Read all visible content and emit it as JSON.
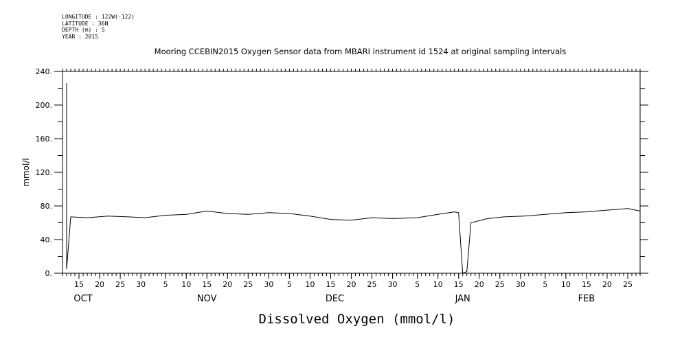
{
  "header": {
    "longitude": "LONGITUDE : 122W(-122)",
    "latitude": "LATITUDE : 36N",
    "depth": "DEPTH (m) : 5",
    "year": "YEAR : 2015"
  },
  "chart_data": {
    "type": "line",
    "title": "Mooring CCEBIN2015 Oxygen Sensor data from MBARI instrument id 1524 at original sampling intervals",
    "xlabel": "Dissolved Oxygen (mmol/l)",
    "ylabel": "mmol/l",
    "ylim": [
      0,
      240
    ],
    "yticks": [
      0,
      40,
      80,
      120,
      160,
      200,
      240
    ],
    "ytick_labels": [
      "0.",
      "40.",
      "80.",
      "120.",
      "160.",
      "200.",
      "240."
    ],
    "xlim": [
      "2015-10-11",
      "2016-02-28"
    ],
    "day_ticks": [
      {
        "date": "2015-10-15",
        "label": "15"
      },
      {
        "date": "2015-10-20",
        "label": "20"
      },
      {
        "date": "2015-10-25",
        "label": "25"
      },
      {
        "date": "2015-10-30",
        "label": "30"
      },
      {
        "date": "2015-11-05",
        "label": "5"
      },
      {
        "date": "2015-11-10",
        "label": "10"
      },
      {
        "date": "2015-11-15",
        "label": "15"
      },
      {
        "date": "2015-11-20",
        "label": "20"
      },
      {
        "date": "2015-11-25",
        "label": "25"
      },
      {
        "date": "2015-11-30",
        "label": "30"
      },
      {
        "date": "2015-12-05",
        "label": "5"
      },
      {
        "date": "2015-12-10",
        "label": "10"
      },
      {
        "date": "2015-12-15",
        "label": "15"
      },
      {
        "date": "2015-12-20",
        "label": "20"
      },
      {
        "date": "2015-12-25",
        "label": "25"
      },
      {
        "date": "2015-12-30",
        "label": "30"
      },
      {
        "date": "2016-01-05",
        "label": "5"
      },
      {
        "date": "2016-01-10",
        "label": "10"
      },
      {
        "date": "2016-01-15",
        "label": "15"
      },
      {
        "date": "2016-01-20",
        "label": "20"
      },
      {
        "date": "2016-01-25",
        "label": "25"
      },
      {
        "date": "2016-01-30",
        "label": "30"
      },
      {
        "date": "2016-02-05",
        "label": "5"
      },
      {
        "date": "2016-02-10",
        "label": "10"
      },
      {
        "date": "2016-02-15",
        "label": "15"
      },
      {
        "date": "2016-02-20",
        "label": "20"
      },
      {
        "date": "2016-02-25",
        "label": "25"
      }
    ],
    "months": [
      {
        "date": "2015-10-16",
        "label": "OCT"
      },
      {
        "date": "2015-11-15",
        "label": "NOV"
      },
      {
        "date": "2015-12-16",
        "label": "DEC"
      },
      {
        "date": "2016-01-16",
        "label": "JAN"
      },
      {
        "date": "2016-02-15",
        "label": "FEB"
      }
    ],
    "series": [
      {
        "values": [
          [
            "2015-10-12",
            226
          ],
          [
            "2015-10-12",
            5
          ],
          [
            "2015-10-13",
            67
          ],
          [
            "2015-10-17",
            66
          ],
          [
            "2015-10-22",
            68
          ],
          [
            "2015-10-27",
            67
          ],
          [
            "2015-10-31",
            66
          ],
          [
            "2015-11-05",
            69
          ],
          [
            "2015-11-10",
            70
          ],
          [
            "2015-11-15",
            74
          ],
          [
            "2015-11-20",
            71
          ],
          [
            "2015-11-25",
            70
          ],
          [
            "2015-11-30",
            72
          ],
          [
            "2015-12-05",
            71
          ],
          [
            "2015-12-10",
            68
          ],
          [
            "2015-12-15",
            64
          ],
          [
            "2015-12-20",
            63
          ],
          [
            "2015-12-25",
            66
          ],
          [
            "2015-12-30",
            65
          ],
          [
            "2016-01-05",
            66
          ],
          [
            "2016-01-10",
            70
          ],
          [
            "2016-01-14",
            73
          ],
          [
            "2016-01-15",
            72
          ],
          [
            "2016-01-16",
            0
          ],
          [
            "2016-01-17",
            2
          ],
          [
            "2016-01-18",
            60
          ],
          [
            "2016-01-22",
            65
          ],
          [
            "2016-01-26",
            67
          ],
          [
            "2016-01-31",
            68
          ],
          [
            "2016-02-05",
            70
          ],
          [
            "2016-02-10",
            72
          ],
          [
            "2016-02-15",
            73
          ],
          [
            "2016-02-20",
            75
          ],
          [
            "2016-02-25",
            77
          ],
          [
            "2016-02-28",
            74
          ]
        ]
      }
    ]
  }
}
